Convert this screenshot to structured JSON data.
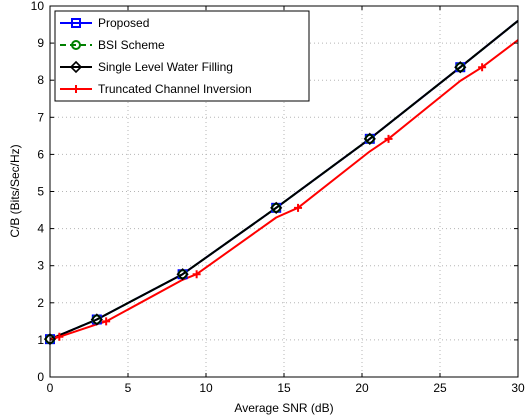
{
  "chart_data": {
    "type": "line",
    "title": "",
    "xlabel": "Average SNR (dB)",
    "ylabel": "C/B (Bits/Sec/Hz)",
    "xlim": [
      0,
      30
    ],
    "ylim": [
      0,
      10
    ],
    "xticks": [
      0,
      5,
      10,
      15,
      20,
      25,
      30
    ],
    "yticks": [
      0,
      1,
      2,
      3,
      4,
      5,
      6,
      7,
      8,
      9,
      10
    ],
    "grid": true,
    "legend_position": "top-left",
    "series": [
      {
        "name": "Proposed",
        "color": "#0000ff",
        "line_style": "solid",
        "marker": "square",
        "x": [
          0,
          3,
          8.5,
          14.5,
          20.5,
          26.3,
          30
        ],
        "y": [
          1.02,
          1.55,
          2.77,
          4.56,
          6.42,
          8.35,
          9.6
        ],
        "marker_x": [
          0,
          3,
          8.5,
          14.5,
          20.5,
          26.3
        ]
      },
      {
        "name": "BSI Scheme",
        "color": "#008000",
        "line_style": "dashed",
        "marker": "circle",
        "x": [
          0,
          3,
          8.5,
          14.5,
          20.5,
          26.3,
          30
        ],
        "y": [
          1.02,
          1.55,
          2.77,
          4.56,
          6.42,
          8.35,
          9.6
        ],
        "marker_x": [
          0,
          3,
          8.5,
          14.5,
          20.5,
          26.3
        ]
      },
      {
        "name": "Single Level Water Filling",
        "color": "#000000",
        "line_style": "solid",
        "marker": "diamond",
        "x": [
          0,
          3,
          8.5,
          14.5,
          20.5,
          26.3,
          30
        ],
        "y": [
          1.02,
          1.55,
          2.77,
          4.56,
          6.42,
          8.35,
          9.6
        ],
        "marker_x": [
          0,
          3,
          8.5,
          14.5,
          20.5,
          26.3
        ]
      },
      {
        "name": "Truncated Channel Inversion",
        "color": "#ff0000",
        "line_style": "solid",
        "marker": "plus",
        "x": [
          0,
          3,
          3.6,
          8.5,
          9.4,
          14.5,
          15.9,
          20.5,
          21.7,
          26.3,
          27.7,
          30
        ],
        "y": [
          1.0,
          1.42,
          1.5,
          2.62,
          2.77,
          4.3,
          4.56,
          6.08,
          6.42,
          7.98,
          8.35,
          9.08
        ],
        "marker_x": [
          0.6,
          3.6,
          9.4,
          15.9,
          21.7,
          27.7
        ]
      }
    ]
  }
}
